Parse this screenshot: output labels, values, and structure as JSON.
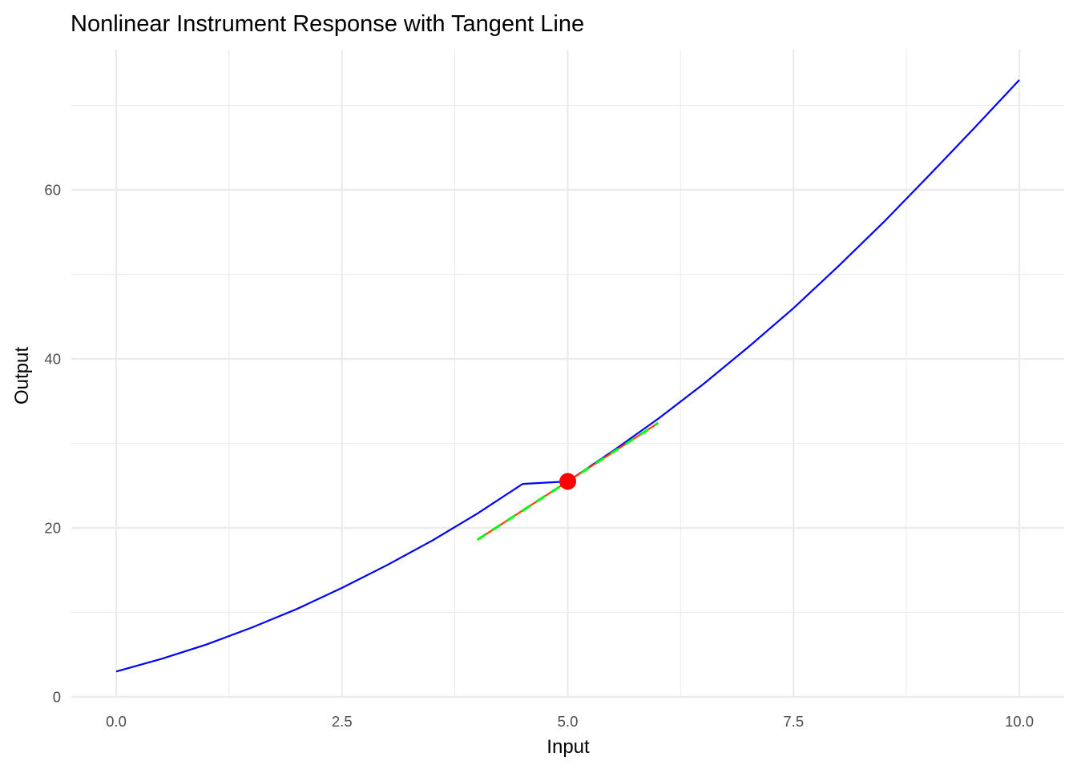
{
  "chart_data": {
    "type": "line",
    "title": "Nonlinear Instrument Response with Tangent Line",
    "xlabel": "Input",
    "ylabel": "Output",
    "xlim": [
      -0.5,
      10.5
    ],
    "ylim": [
      0,
      73
    ],
    "grid": true,
    "x_ticks": [
      0.0,
      2.5,
      5.0,
      7.5,
      10.0
    ],
    "x_tick_labels": [
      "0.0",
      "2.5",
      "5.0",
      "7.5",
      "10.0"
    ],
    "y_ticks": [
      0,
      20,
      40,
      60
    ],
    "y_tick_labels": [
      "0",
      "20",
      "40",
      "60"
    ],
    "x_minor_ticks": [
      1.25,
      3.75,
      6.25,
      8.75
    ],
    "y_minor_ticks": [
      10,
      30,
      50,
      70
    ],
    "series": [
      {
        "kind": "curve",
        "color": "#0000ff",
        "x": [
          0,
          0.5,
          1,
          1.5,
          2,
          2.5,
          3,
          3.5,
          4,
          4.5,
          5,
          5.5,
          6,
          6.5,
          7,
          7.5,
          8,
          8.5,
          9,
          9.5,
          10
        ],
        "y": [
          3.0,
          4.5,
          6.2,
          8.2,
          10.4,
          12.9,
          15.6,
          18.5,
          21.7,
          25.2,
          25.5,
          29.1,
          32.9,
          37.0,
          41.4,
          46.0,
          51.0,
          56.2,
          61.7,
          67.3,
          73.0
        ]
      },
      {
        "kind": "tangent",
        "color": "#ff4500",
        "x": [
          4,
          6
        ],
        "y": [
          18.6,
          32.4
        ]
      },
      {
        "kind": "tangent-dashed",
        "color": "#00ff00",
        "x": [
          4,
          6
        ],
        "y": [
          18.6,
          32.4
        ]
      },
      {
        "kind": "point",
        "color": "#ff0000",
        "x": [
          5
        ],
        "y": [
          25.5
        ]
      }
    ]
  }
}
